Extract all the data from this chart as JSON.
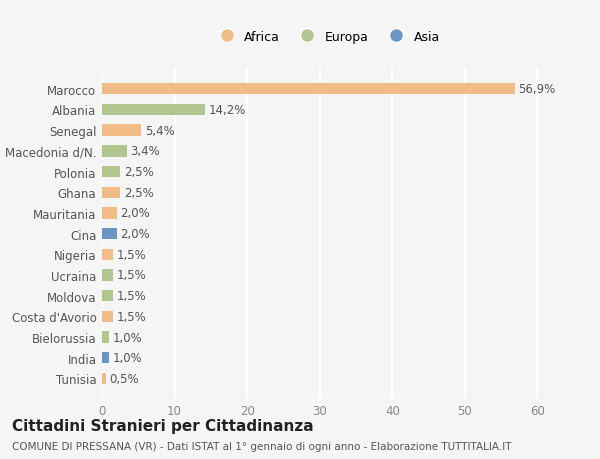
{
  "categories": [
    "Marocco",
    "Albania",
    "Senegal",
    "Macedonia d/N.",
    "Polonia",
    "Ghana",
    "Mauritania",
    "Cina",
    "Nigeria",
    "Ucraina",
    "Moldova",
    "Costa d'Avorio",
    "Bielorussia",
    "India",
    "Tunisia"
  ],
  "values": [
    56.9,
    14.2,
    5.4,
    3.4,
    2.5,
    2.5,
    2.0,
    2.0,
    1.5,
    1.5,
    1.5,
    1.5,
    1.0,
    1.0,
    0.5
  ],
  "labels": [
    "56,9%",
    "14,2%",
    "5,4%",
    "3,4%",
    "2,5%",
    "2,5%",
    "2,0%",
    "2,0%",
    "1,5%",
    "1,5%",
    "1,5%",
    "1,5%",
    "1,0%",
    "1,0%",
    "0,5%"
  ],
  "continents": [
    "Africa",
    "Europa",
    "Africa",
    "Europa",
    "Europa",
    "Africa",
    "Africa",
    "Asia",
    "Africa",
    "Europa",
    "Europa",
    "Africa",
    "Europa",
    "Asia",
    "Africa"
  ],
  "colors": {
    "Africa": "#F2BC87",
    "Europa": "#B0C68E",
    "Asia": "#6B96C2"
  },
  "legend_labels": [
    "Africa",
    "Europa",
    "Asia"
  ],
  "xlim": [
    0,
    62
  ],
  "xticks": [
    0,
    10,
    20,
    30,
    40,
    50,
    60
  ],
  "title": "Cittadini Stranieri per Cittadinanza",
  "subtitle": "COMUNE DI PRESSANA (VR) - Dati ISTAT al 1° gennaio di ogni anno - Elaborazione TUTTITALIA.IT",
  "bg_color": "#f5f5f5",
  "bar_height": 0.55,
  "grid_color": "#ffffff",
  "label_fontsize": 8.5,
  "title_fontsize": 11,
  "subtitle_fontsize": 7.5
}
